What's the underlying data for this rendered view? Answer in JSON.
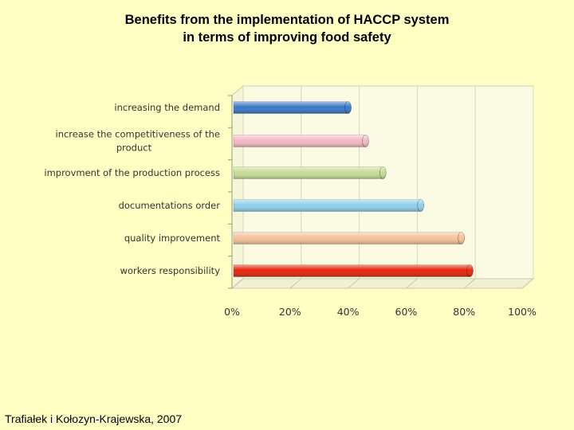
{
  "title_line1": "Benefits from the implementation of HACCP system",
  "title_line2": "in terms of improving food safety",
  "source": "Trafiałek i Kołozyn-Krajewska, 2007",
  "chart_data": {
    "type": "bar",
    "orientation": "horizontal",
    "categories": [
      "increasing the demand",
      "increase the competitiveness of the product",
      "improvment of the production process",
      "documentations order",
      "quality improvement",
      "workers responsibility"
    ],
    "category_label_lines": [
      [
        "increasing the demand"
      ],
      [
        "increase the competitiveness of the",
        "product"
      ],
      [
        "improvment of the production process"
      ],
      [
        "documentations order"
      ],
      [
        "quality improvement"
      ],
      [
        "workers responsibility"
      ]
    ],
    "values": [
      40,
      46,
      52,
      65,
      79,
      82
    ],
    "bar_colors": [
      "#3a78c9",
      "#f4b9c4",
      "#c6dc95",
      "#8fd0ea",
      "#f5c29a",
      "#e8260c"
    ],
    "xlim": [
      0,
      100
    ],
    "xticks": [
      "0%",
      "20%",
      "40%",
      "60%",
      "80%",
      "100%"
    ],
    "grid": true
  }
}
